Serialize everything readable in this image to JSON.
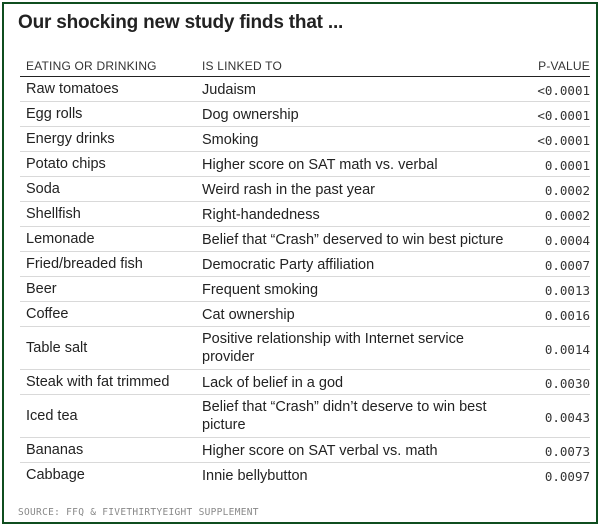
{
  "title": "Our shocking new study finds that ...",
  "headers": {
    "food": "EATING OR DRINKING",
    "link": "IS LINKED TO",
    "p": "P-VALUE"
  },
  "chart_data": {
    "type": "table",
    "columns": [
      "EATING OR DRINKING",
      "IS LINKED TO",
      "P-VALUE"
    ],
    "rows": [
      {
        "food": "Raw tomatoes",
        "link": "Judaism",
        "p": "<0.0001"
      },
      {
        "food": "Egg rolls",
        "link": "Dog ownership",
        "p": "<0.0001"
      },
      {
        "food": "Energy drinks",
        "link": "Smoking",
        "p": "<0.0001"
      },
      {
        "food": "Potato chips",
        "link": "Higher score on SAT math vs. verbal",
        "p": "0.0001"
      },
      {
        "food": "Soda",
        "link": "Weird rash in the past year",
        "p": "0.0002"
      },
      {
        "food": "Shellfish",
        "link": "Right-handedness",
        "p": "0.0002"
      },
      {
        "food": "Lemonade",
        "link": "Belief that “Crash” deserved to win best picture",
        "p": "0.0004"
      },
      {
        "food": "Fried/breaded fish",
        "link": "Democratic Party affiliation",
        "p": "0.0007"
      },
      {
        "food": "Beer",
        "link": "Frequent smoking",
        "p": "0.0013"
      },
      {
        "food": "Coffee",
        "link": "Cat ownership",
        "p": "0.0016"
      },
      {
        "food": "Table salt",
        "link": "Positive relationship with Internet service provider",
        "p": "0.0014"
      },
      {
        "food": "Steak with fat trimmed",
        "link": "Lack of belief in a god",
        "p": "0.0030"
      },
      {
        "food": "Iced tea",
        "link": "Belief that “Crash” didn’t deserve to win best picture",
        "p": "0.0043"
      },
      {
        "food": "Bananas",
        "link": "Higher score on SAT verbal vs. math",
        "p": "0.0073"
      },
      {
        "food": "Cabbage",
        "link": "Innie bellybutton",
        "p": "0.0097"
      }
    ]
  },
  "source": "SOURCE: FFQ & FIVETHIRTYEIGHT SUPPLEMENT",
  "colors": {
    "border": "#0f4d1f",
    "text": "#222222",
    "rule": "#d9d9d9"
  }
}
